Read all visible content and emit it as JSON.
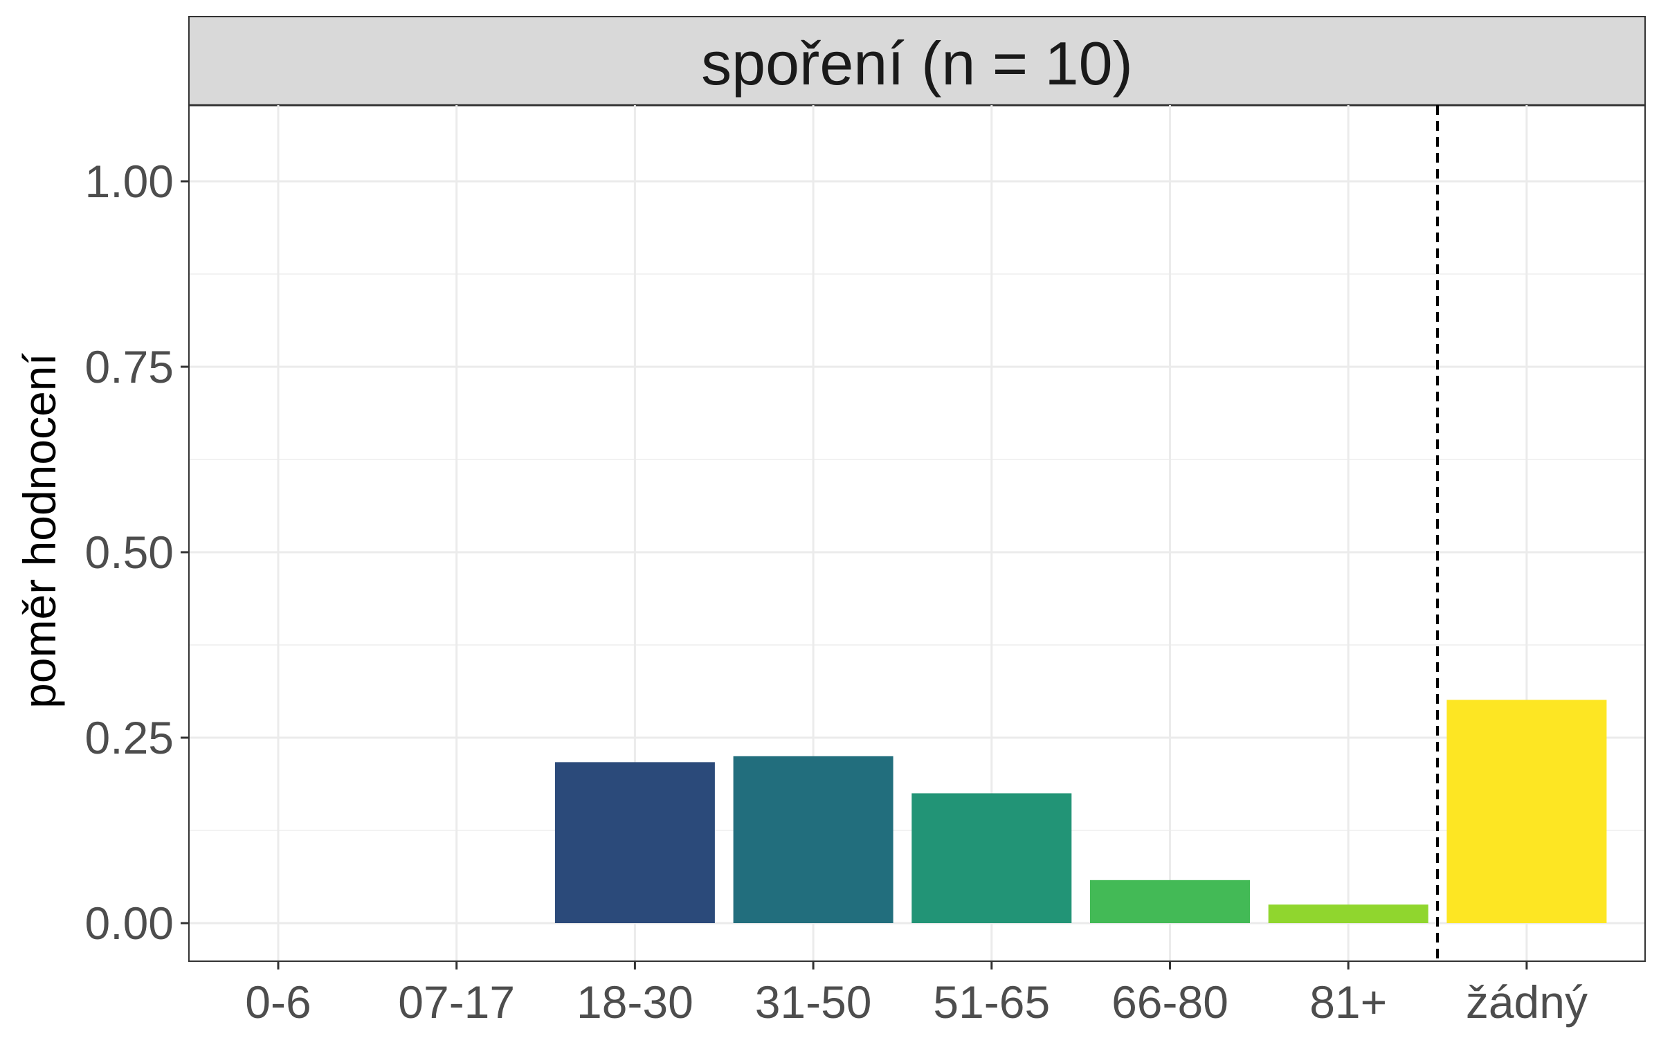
{
  "chart_data": {
    "type": "bar",
    "title": "spoření (n = 10)",
    "xlabel": "",
    "ylabel": "poměr hodnocení",
    "categories": [
      "0-6",
      "07-17",
      "18-30",
      "31-50",
      "51-65",
      "66-80",
      "81+",
      "žádný"
    ],
    "values": [
      0,
      0,
      0.217,
      0.225,
      0.175,
      0.058,
      0.025,
      0.301
    ],
    "colors": [
      "#440154",
      "#46327E",
      "#2B4A7A",
      "#226E7D",
      "#229476",
      "#43BA56",
      "#90D62E",
      "#FDE623"
    ],
    "ylim": [
      -0.05,
      1.1
    ],
    "yticks": [
      0,
      0.25,
      0.5,
      0.75,
      1.0
    ],
    "ytick_labels": [
      "0.00",
      "0.25",
      "0.50",
      "0.75",
      "1.00"
    ],
    "reference_line": {
      "between": [
        "81+",
        "žádný"
      ],
      "style": "dashed"
    },
    "grid": true,
    "legend": "none"
  }
}
